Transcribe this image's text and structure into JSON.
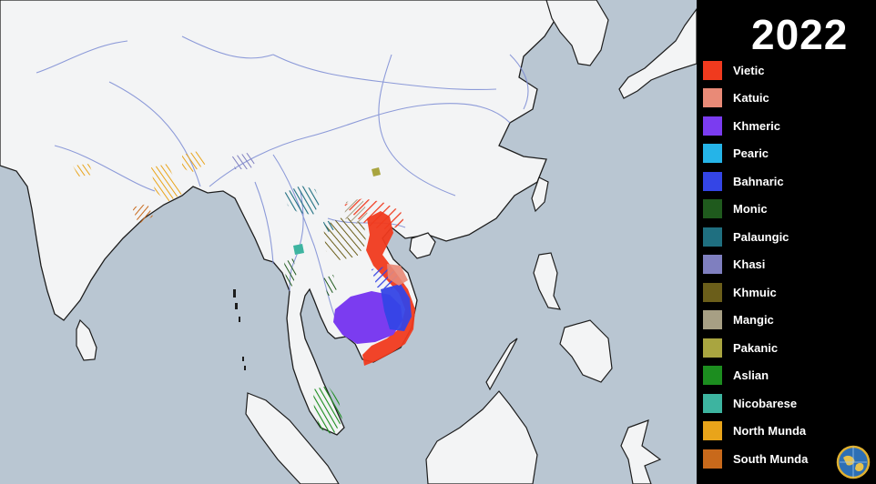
{
  "year": "2022",
  "colors": {
    "sea": "#b9c6d2",
    "land": "#f3f4f5",
    "river": "#7b8bd4",
    "coast": "#1d1d1d",
    "panel": "#000000"
  },
  "legend": [
    {
      "label": "Vietic",
      "color": "#f03a1e"
    },
    {
      "label": "Katuic",
      "color": "#e98a77"
    },
    {
      "label": "Khmeric",
      "color": "#7b3cf0"
    },
    {
      "label": "Pearic",
      "color": "#25b4e8"
    },
    {
      "label": "Bahnaric",
      "color": "#3445e6"
    },
    {
      "label": "Monic",
      "color": "#1f5a1d"
    },
    {
      "label": "Palaungic",
      "color": "#1f6f80"
    },
    {
      "label": "Khasi",
      "color": "#7f7fbf"
    },
    {
      "label": "Khmuic",
      "color": "#6b5e1a"
    },
    {
      "label": "Mangic",
      "color": "#a79f84"
    },
    {
      "label": "Pakanic",
      "color": "#a9a540"
    },
    {
      "label": "Aslian",
      "color": "#1c8d1f"
    },
    {
      "label": "Nicobarese",
      "color": "#3db4a0"
    },
    {
      "label": "North Munda",
      "color": "#e9a41a"
    },
    {
      "label": "South Munda",
      "color": "#c8691b"
    }
  ],
  "logo": {
    "icon": "globe-icon"
  }
}
